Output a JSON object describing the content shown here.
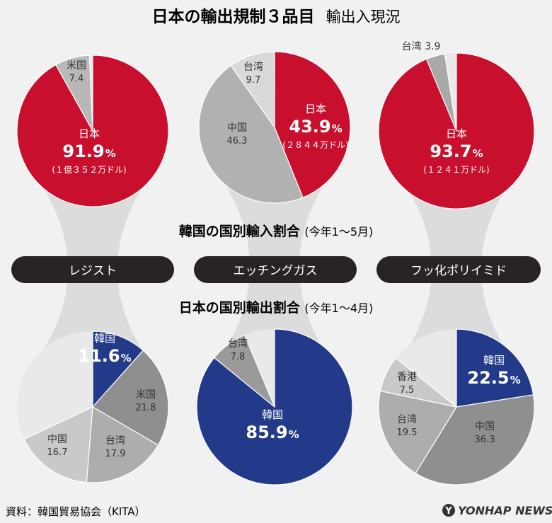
{
  "title_main": "日本の輸出規制３品目",
  "title_sub": "輸出入現況",
  "import_section": {
    "label": "韓国の国別輸入割合",
    "period": "(今年1～5月)"
  },
  "export_section": {
    "label": "日本の国別輸出割合",
    "period": "(今年1～4月)"
  },
  "items": [
    "レジスト",
    "エッチングガス",
    "フッ化ポリイミド"
  ],
  "source": "資料：韓国貿易協会（KITA）",
  "logo": "YONHAP NEWS",
  "colors": {
    "japan_red": "#c8102e",
    "korea_blue": "#233a8b",
    "gray_dark": "#8f8f8f",
    "gray_mid": "#adadad",
    "gray_light": "#c9c9c9",
    "gray_pale": "#e9e9e9",
    "pill": "#2a2323"
  },
  "chart_data": [
    {
      "type": "pie",
      "group": "韓国の国別輸入割合",
      "item": "レジスト",
      "slices": [
        {
          "label": "日本",
          "value": "91.9",
          "unit": "%",
          "note": "(１億３５２万ドル)",
          "color": "#c8102e"
        },
        {
          "label": "米国",
          "value": "7.4",
          "color": "#b8b8b8"
        }
      ]
    },
    {
      "type": "pie",
      "group": "韓国の国別輸入割合",
      "item": "エッチングガス",
      "slices": [
        {
          "label": "日本",
          "value": "43.9",
          "unit": "%",
          "note": "(２８４４万ドル)",
          "color": "#c8102e"
        },
        {
          "label": "中国",
          "value": "46.3",
          "color": "#b1b1b1"
        },
        {
          "label": "台湾",
          "value": "9.7",
          "color": "#d9d9d9"
        }
      ]
    },
    {
      "type": "pie",
      "group": "韓国の国別輸入割合",
      "item": "フッ化ポリイミド",
      "slices": [
        {
          "label": "日本",
          "value": "93.7",
          "unit": "%",
          "note": "(１２４１万ドル)",
          "color": "#c8102e"
        },
        {
          "label": "台湾",
          "value": "3.9",
          "color": "#a9a9a9"
        }
      ]
    },
    {
      "type": "pie",
      "group": "日本の国別輸出割合",
      "item": "レジスト",
      "slices": [
        {
          "label": "韓国",
          "value": "11.6",
          "unit": "%",
          "color": "#233a8b"
        },
        {
          "label": "米国",
          "value": "21.8",
          "color": "#8f8f8f"
        },
        {
          "label": "台湾",
          "value": "17.9",
          "color": "#adadad"
        },
        {
          "label": "中国",
          "value": "16.7",
          "color": "#c9c9c9"
        }
      ]
    },
    {
      "type": "pie",
      "group": "日本の国別輸出割合",
      "item": "エッチングガス",
      "slices": [
        {
          "label": "韓国",
          "value": "85.9",
          "unit": "%",
          "color": "#233a8b"
        },
        {
          "label": "台湾",
          "value": "7.8",
          "color": "#9a9a9a"
        }
      ]
    },
    {
      "type": "pie",
      "group": "日本の国別輸出割合",
      "item": "フッ化ポリイミド",
      "slices": [
        {
          "label": "韓国",
          "value": "22.5",
          "unit": "%",
          "color": "#233a8b"
        },
        {
          "label": "中国",
          "value": "36.3",
          "color": "#8f8f8f"
        },
        {
          "label": "台湾",
          "value": "19.5",
          "color": "#adadad"
        },
        {
          "label": "香港",
          "value": "7.5",
          "color": "#c9c9c9"
        }
      ]
    }
  ]
}
